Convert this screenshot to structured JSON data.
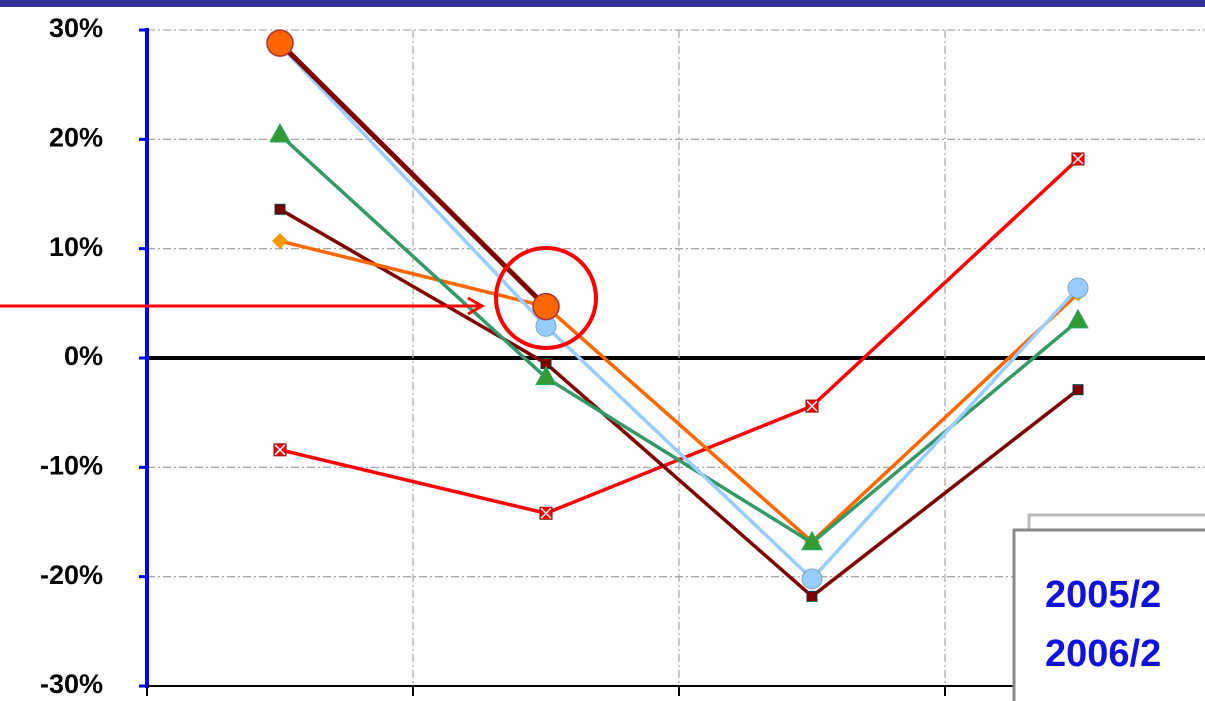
{
  "chart_data": {
    "type": "line",
    "categories": [
      null,
      null,
      null,
      null
    ],
    "ylim": [
      -30,
      30
    ],
    "yticks": [
      {
        "value": -30,
        "label": "-30%"
      },
      {
        "value": -20,
        "label": "-20%"
      },
      {
        "value": -10,
        "label": "-10%"
      },
      {
        "value": 0,
        "label": "0%"
      },
      {
        "value": 10,
        "label": "10%"
      },
      {
        "value": 20,
        "label": "20%"
      },
      {
        "value": 30,
        "label": "30%"
      }
    ],
    "grid": true,
    "series": [
      {
        "color": "#ff0000",
        "marker_color": "#ff0000",
        "marker": "xsquare",
        "values": [
          -8.4,
          -14.2,
          -4.4,
          18.2
        ]
      },
      {
        "color": "#800000",
        "marker_color": "#800000",
        "marker": "square",
        "values": [
          13.6,
          -0.5,
          -21.8,
          -2.9
        ]
      },
      {
        "color": "#ff6600",
        "marker_color": "#ff9900",
        "marker": "diamond",
        "values": [
          10.7,
          4.7,
          -16.8,
          5.9
        ]
      },
      {
        "color": "#339966",
        "marker_color": "#339933",
        "marker": "triangle",
        "values": [
          20.4,
          -1.8,
          -16.9,
          3.4
        ]
      },
      {
        "color": "#99ccff",
        "marker_color": "#99ccff",
        "marker": "circle",
        "values": [
          28.6,
          2.9,
          -20.2,
          6.4
        ]
      },
      {
        "color": "#800000",
        "marker_color": "#ff6600",
        "marker": "bigcircle",
        "values": [
          28.8,
          4.7,
          null,
          null
        ]
      }
    ],
    "annotations": [
      "2005/2",
      "2006/2"
    ]
  }
}
